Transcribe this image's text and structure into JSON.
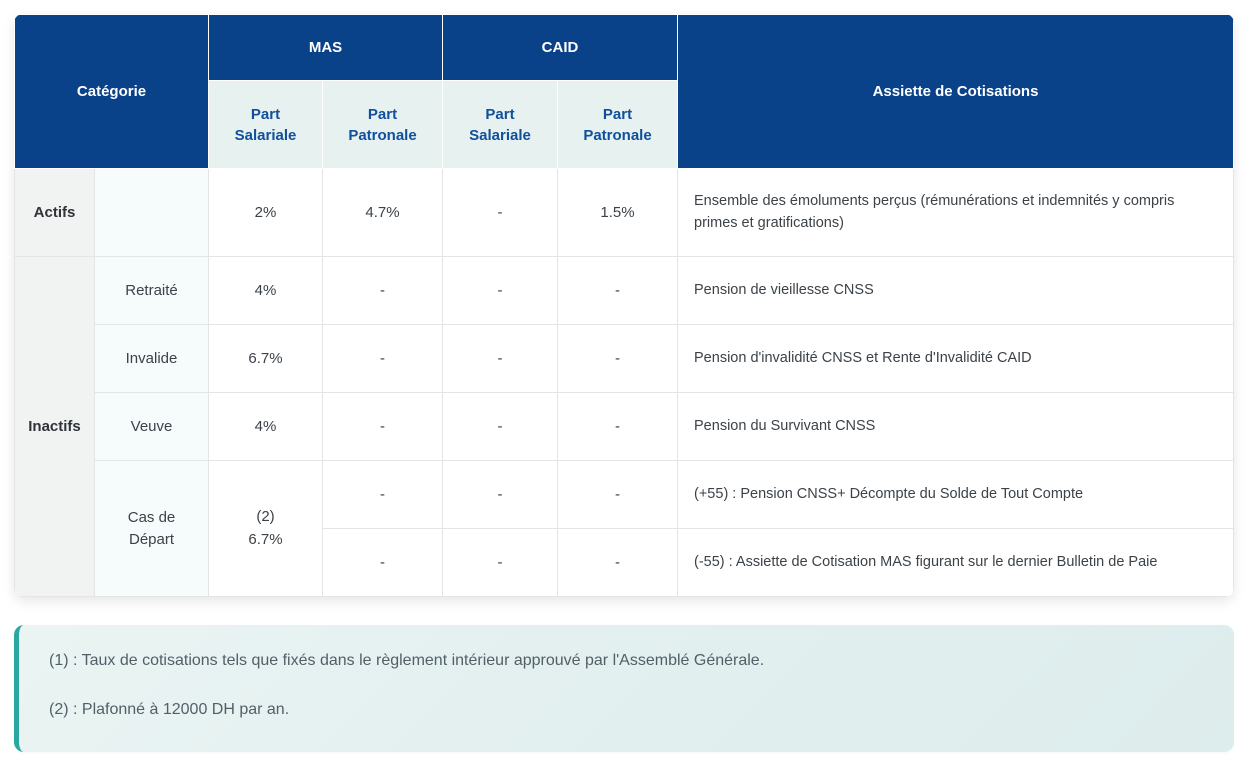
{
  "table": {
    "header": {
      "categorie": "Catégorie",
      "mas": "MAS",
      "caid": "CAID",
      "assiette": "Assiette de Cotisations",
      "part_salariale": "Part Salariale",
      "part_patronale": "Part Patronale"
    },
    "rows": [
      {
        "group": "Actifs",
        "sub": "",
        "mas_sal": "2%",
        "mas_pat": "4.7%",
        "caid_sal": "-",
        "caid_pat": "1.5%",
        "assiette": "Ensemble des émoluments perçus (rémunérations et indemnités y compris primes et gratifications)"
      },
      {
        "group": "Inactifs",
        "sub": "Retraité",
        "mas_sal": "4%",
        "mas_pat": "-",
        "caid_sal": "-",
        "caid_pat": "-",
        "assiette": "Pension de vieillesse CNSS"
      },
      {
        "sub": "Invalide",
        "mas_sal": "6.7%",
        "mas_pat": "-",
        "caid_sal": "-",
        "caid_pat": "-",
        "assiette": "Pension d'invalidité CNSS et Rente d'Invalidité CAID"
      },
      {
        "sub": "Veuve",
        "mas_sal": "4%",
        "mas_pat": "-",
        "caid_sal": "-",
        "caid_pat": "-",
        "assiette": "Pension du Survivant CNSS"
      },
      {
        "sub": "Cas de Départ",
        "mas_sal": "(2)\n6.7%",
        "mas_pat": "-",
        "caid_sal": "-",
        "caid_pat": "-",
        "assiette": "(+55) : Pension CNSS+ Décompte du Solde de Tout Compte"
      },
      {
        "mas_pat": "-",
        "caid_sal": "-",
        "caid_pat": "-",
        "assiette": "(-55) : Assiette de Cotisation MAS figurant sur le dernier Bulletin de Paie"
      }
    ]
  },
  "notes": [
    "(1) : Taux de cotisations tels que fixés dans le règlement intérieur approuvé par l'Assemblé Générale.",
    "(2) : Plafonné à 12000 DH par an."
  ],
  "colors": {
    "header_blue": "#0a428a",
    "subheader_bg": "#e7f1f0",
    "subheader_text": "#0f4f9b",
    "group_col_bg": "#f1f2f2",
    "sub_col_bg": "#f6fbfc",
    "note_border_teal": "#29a7a0",
    "note_bg": "#e2efef"
  }
}
